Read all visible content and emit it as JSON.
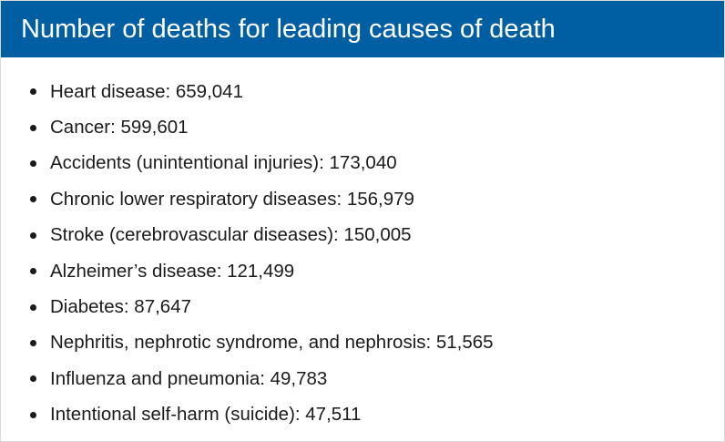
{
  "header": {
    "title": "Number of deaths for leading causes of death"
  },
  "causes": [
    {
      "label": "Heart disease: 659,041"
    },
    {
      "label": "Cancer: 599,601"
    },
    {
      "label": "Accidents (unintentional injuries): 173,040"
    },
    {
      "label": "Chronic lower respiratory diseases: 156,979"
    },
    {
      "label": "Stroke (cerebrovascular diseases): 150,005"
    },
    {
      "label": "Alzheimer’s disease: 121,499"
    },
    {
      "label": "Diabetes: 87,647"
    },
    {
      "label": "Nephritis, nephrotic syndrome, and nephrosis: 51,565"
    },
    {
      "label": "Influenza and pneumonia: 49,783"
    },
    {
      "label": "Intentional self-harm (suicide): 47,511"
    }
  ]
}
